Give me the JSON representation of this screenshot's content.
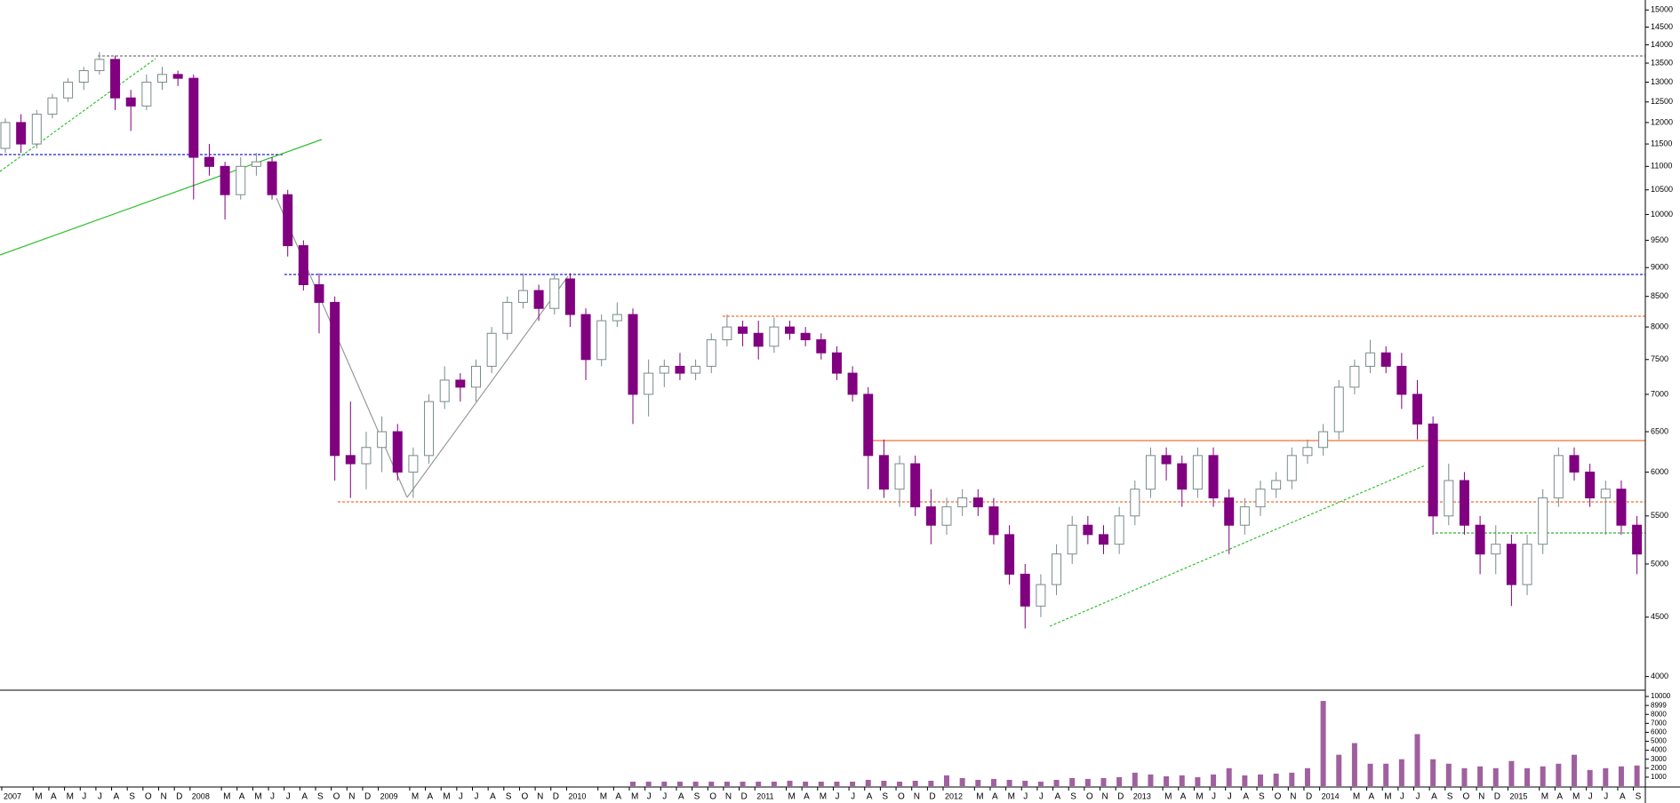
{
  "chart_data": {
    "type": "candlestick",
    "categories": [
      "2007",
      null,
      "M",
      "A",
      "M",
      "J",
      "J",
      "A",
      "S",
      "O",
      "N",
      "D",
      "2008",
      null,
      "M",
      "A",
      "M",
      "J",
      "J",
      "A",
      "S",
      "O",
      "N",
      "D",
      "2009",
      null,
      "M",
      "A",
      "M",
      "J",
      "J",
      "A",
      "S",
      "O",
      "N",
      "D",
      "2010",
      null,
      "M",
      "A",
      "M",
      "J",
      "J",
      "A",
      "S",
      "O",
      "N",
      "D",
      "2011",
      null,
      "M",
      "A",
      "M",
      "J",
      "J",
      "A",
      "S",
      "O",
      "N",
      "D",
      "2012",
      null,
      "M",
      "A",
      "M",
      "J",
      "J",
      "A",
      "S",
      "O",
      "N",
      "D",
      "2013",
      null,
      "M",
      "A",
      "M",
      "J",
      "J",
      "A",
      "S",
      "O",
      "N",
      "D",
      "2014",
      null,
      "M",
      "A",
      "M",
      "J",
      "J",
      "A",
      "S",
      "O",
      "N",
      "D",
      "2015",
      null,
      "M",
      "A",
      "M",
      "J",
      "J",
      "A",
      "S"
    ],
    "open": [
      11400,
      12000,
      11500,
      12200,
      12600,
      13000,
      13300,
      13600,
      12600,
      12400,
      13000,
      13200,
      13100,
      11200,
      11000,
      10400,
      11000,
      11100,
      10400,
      9400,
      8700,
      8400,
      6200,
      6100,
      6300,
      6500,
      6000,
      6200,
      6900,
      7200,
      7100,
      7400,
      7900,
      8400,
      8600,
      8300,
      8800,
      8200,
      7500,
      8100,
      8200,
      7000,
      7300,
      7400,
      7300,
      7400,
      7800,
      8000,
      7900,
      7700,
      8000,
      7900,
      7800,
      7600,
      7300,
      7000,
      6200,
      5800,
      6100,
      5600,
      5400,
      5600,
      5700,
      5600,
      5300,
      4900,
      4600,
      4800,
      5100,
      5400,
      5300,
      5200,
      5500,
      5800,
      6200,
      6100,
      5800,
      6200,
      5700,
      5400,
      5600,
      5800,
      5900,
      6200,
      6300,
      6500,
      7100,
      7400,
      7600,
      7400,
      7000,
      6600,
      5500,
      5900,
      5400,
      5100,
      5200,
      4800,
      5200,
      5700,
      6200,
      6000,
      5700,
      5800,
      5400
    ],
    "high": [
      12100,
      12200,
      12300,
      12700,
      13100,
      13400,
      13800,
      13700,
      12800,
      13200,
      13400,
      13300,
      13200,
      11500,
      11100,
      11200,
      11300,
      11200,
      10500,
      9500,
      8900,
      8500,
      6900,
      6500,
      6700,
      6600,
      6300,
      7000,
      7400,
      7300,
      7500,
      8000,
      8500,
      8900,
      8700,
      8900,
      8900,
      8300,
      8200,
      8400,
      8300,
      7500,
      7500,
      7600,
      7500,
      7900,
      8200,
      8100,
      8100,
      8150,
      8100,
      8000,
      7900,
      7700,
      7400,
      7100,
      6400,
      6200,
      6200,
      5800,
      5700,
      5800,
      5800,
      5700,
      5400,
      5000,
      4900,
      5200,
      5500,
      5500,
      5400,
      5600,
      5900,
      6300,
      6300,
      6200,
      6300,
      6300,
      5800,
      5700,
      5900,
      6000,
      6300,
      6400,
      6600,
      7200,
      7500,
      7800,
      7700,
      7600,
      7200,
      6700,
      6100,
      6000,
      5500,
      5400,
      5300,
      5300,
      5800,
      6300,
      6300,
      6100,
      5900,
      5900,
      5500
    ],
    "low": [
      11300,
      11300,
      11400,
      12100,
      12500,
      12800,
      13200,
      12300,
      11800,
      12300,
      12800,
      12900,
      10300,
      10800,
      9900,
      10300,
      10800,
      10300,
      9200,
      8600,
      7900,
      5900,
      5700,
      5800,
      6000,
      5900,
      5700,
      6100,
      6800,
      6900,
      6900,
      7300,
      7800,
      8300,
      8100,
      8200,
      8000,
      7200,
      7400,
      8000,
      6600,
      6700,
      7100,
      7200,
      7200,
      7300,
      7700,
      7700,
      7500,
      7600,
      7800,
      7700,
      7500,
      7200,
      6900,
      5800,
      5700,
      5600,
      5500,
      5200,
      5300,
      5500,
      5500,
      5200,
      4800,
      4400,
      4500,
      4700,
      5000,
      5200,
      5100,
      5100,
      5400,
      5700,
      5900,
      5600,
      5700,
      5600,
      5100,
      5300,
      5500,
      5700,
      5800,
      6100,
      6200,
      6400,
      7000,
      7300,
      7300,
      6800,
      6400,
      5300,
      5400,
      5300,
      4900,
      4900,
      4600,
      4700,
      5100,
      5600,
      5900,
      5600,
      5300,
      5300,
      4900
    ],
    "close": [
      12000,
      11500,
      12200,
      12600,
      13000,
      13300,
      13600,
      12600,
      12400,
      13000,
      13200,
      13100,
      11200,
      11000,
      10400,
      11000,
      11100,
      10400,
      9400,
      8700,
      8400,
      6200,
      6100,
      6300,
      6500,
      6000,
      6200,
      6900,
      7200,
      7100,
      7400,
      7900,
      8400,
      8600,
      8300,
      8800,
      8200,
      7500,
      8100,
      8200,
      7000,
      7300,
      7400,
      7300,
      7400,
      7800,
      8000,
      7900,
      7700,
      8000,
      7900,
      7800,
      7600,
      7300,
      7000,
      6200,
      5800,
      6100,
      5600,
      5400,
      5600,
      5700,
      5600,
      5300,
      4900,
      4600,
      4800,
      5100,
      5400,
      5300,
      5200,
      5500,
      5800,
      6200,
      6100,
      5800,
      6200,
      5700,
      5400,
      5600,
      5800,
      5900,
      6200,
      6300,
      6500,
      7100,
      7400,
      7600,
      7400,
      7000,
      6600,
      5500,
      5900,
      5400,
      5100,
      5200,
      4800,
      5200,
      5700,
      6200,
      6000,
      5700,
      5800,
      5400,
      5100
    ],
    "ylim": [
      3900,
      15300
    ],
    "log_scale": true,
    "yticks": [
      4000,
      4500,
      5000,
      5500,
      6000,
      6500,
      7000,
      7500,
      8000,
      8500,
      9000,
      9500,
      10000,
      10500,
      11000,
      11500,
      12000,
      12500,
      13000,
      13500,
      14000,
      14500,
      15000
    ],
    "up_color": "#ffffff",
    "up_edge": "#7a8a8a",
    "down_color": "#800080",
    "volume": {
      "color": "#a060a0",
      "ylim": [
        0,
        10500
      ],
      "yticks": [
        1000,
        2000,
        3000,
        4000,
        5000,
        6000,
        7000,
        8000,
        8999,
        10000
      ],
      "values": [
        null,
        null,
        null,
        null,
        null,
        null,
        null,
        null,
        null,
        null,
        null,
        null,
        null,
        null,
        null,
        null,
        null,
        null,
        null,
        null,
        null,
        null,
        null,
        null,
        null,
        null,
        null,
        null,
        null,
        null,
        null,
        null,
        null,
        null,
        null,
        null,
        null,
        null,
        null,
        null,
        500,
        500,
        500,
        500,
        500,
        500,
        500,
        500,
        500,
        500,
        600,
        500,
        500,
        500,
        500,
        700,
        600,
        500,
        600,
        600,
        1200,
        900,
        700,
        800,
        700,
        600,
        500,
        700,
        900,
        800,
        900,
        1000,
        1500,
        1300,
        1100,
        1200,
        1000,
        1300,
        2000,
        1200,
        1300,
        1400,
        1500,
        2000,
        9500,
        3500,
        4800,
        2500,
        2500,
        3000,
        5800,
        3000,
        2500,
        2000,
        2200,
        2000,
        2800,
        2000,
        2200,
        2500,
        3500,
        1800,
        2000,
        2200,
        2300
      ]
    }
  }
}
